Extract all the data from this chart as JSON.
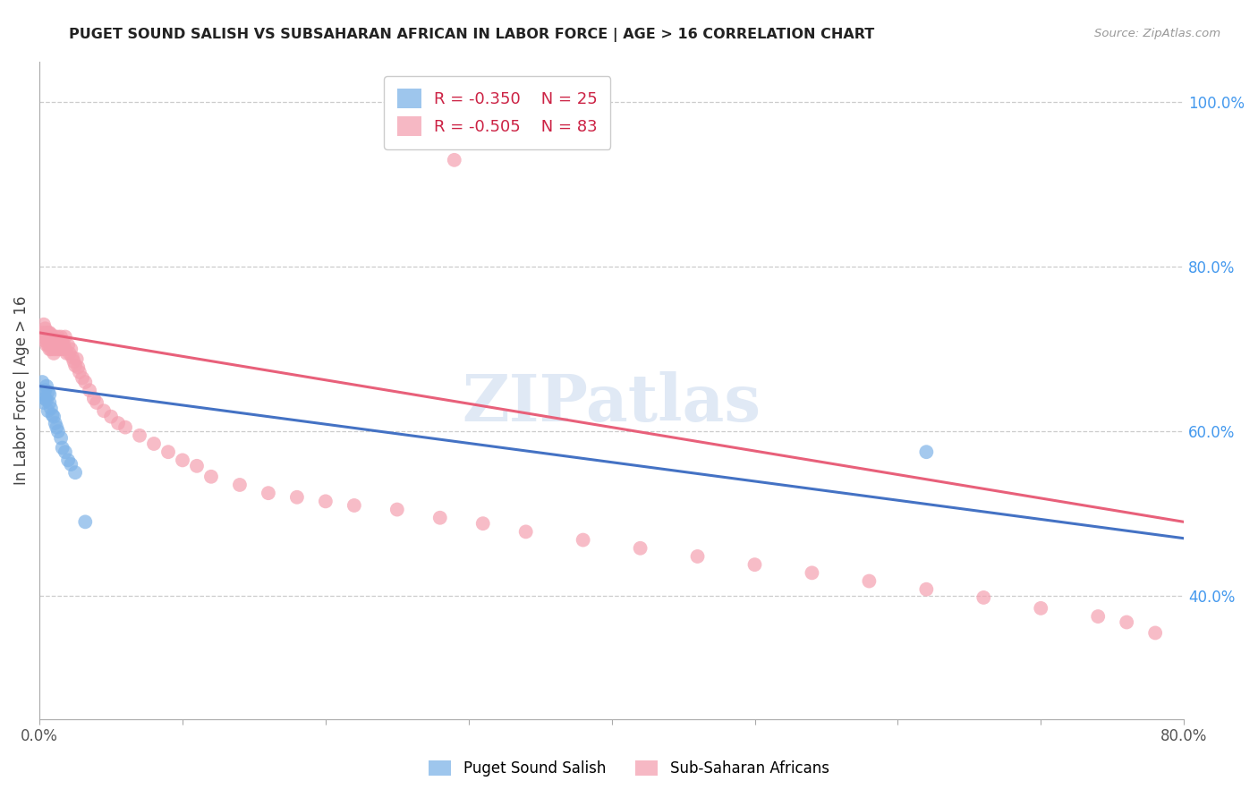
{
  "title": "PUGET SOUND SALISH VS SUBSAHARAN AFRICAN IN LABOR FORCE | AGE > 16 CORRELATION CHART",
  "source": "Source: ZipAtlas.com",
  "ylabel": "In Labor Force | Age > 16",
  "xlim": [
    0.0,
    0.8
  ],
  "ylim": [
    0.25,
    1.05
  ],
  "yticks_right": [
    0.4,
    0.6,
    0.8,
    1.0
  ],
  "ytick_right_labels": [
    "40.0%",
    "60.0%",
    "80.0%",
    "100.0%"
  ],
  "blue_color": "#7EB3E8",
  "pink_color": "#F4A0B0",
  "blue_line_color": "#4472C4",
  "pink_line_color": "#E8607A",
  "legend_r1": "R = -0.350",
  "legend_n1": "N = 25",
  "legend_r2": "R = -0.505",
  "legend_n2": "N = 83",
  "watermark": "ZIPatlas",
  "blue_scatter_x": [
    0.002,
    0.003,
    0.003,
    0.004,
    0.004,
    0.005,
    0.005,
    0.006,
    0.006,
    0.007,
    0.007,
    0.008,
    0.009,
    0.01,
    0.011,
    0.012,
    0.013,
    0.015,
    0.016,
    0.018,
    0.02,
    0.022,
    0.025,
    0.032,
    0.62
  ],
  "blue_scatter_y": [
    0.66,
    0.645,
    0.635,
    0.65,
    0.64,
    0.655,
    0.638,
    0.648,
    0.625,
    0.645,
    0.635,
    0.628,
    0.62,
    0.618,
    0.61,
    0.605,
    0.6,
    0.592,
    0.58,
    0.575,
    0.565,
    0.56,
    0.55,
    0.49,
    0.575
  ],
  "pink_scatter_x": [
    0.002,
    0.003,
    0.003,
    0.004,
    0.004,
    0.005,
    0.005,
    0.005,
    0.006,
    0.006,
    0.006,
    0.007,
    0.007,
    0.007,
    0.008,
    0.008,
    0.008,
    0.009,
    0.009,
    0.01,
    0.01,
    0.01,
    0.011,
    0.011,
    0.012,
    0.012,
    0.013,
    0.013,
    0.014,
    0.015,
    0.015,
    0.016,
    0.016,
    0.017,
    0.018,
    0.018,
    0.019,
    0.02,
    0.021,
    0.022,
    0.023,
    0.024,
    0.025,
    0.026,
    0.027,
    0.028,
    0.03,
    0.032,
    0.035,
    0.038,
    0.04,
    0.045,
    0.05,
    0.055,
    0.06,
    0.07,
    0.08,
    0.09,
    0.1,
    0.11,
    0.12,
    0.14,
    0.16,
    0.18,
    0.2,
    0.22,
    0.25,
    0.28,
    0.31,
    0.34,
    0.38,
    0.42,
    0.46,
    0.5,
    0.54,
    0.58,
    0.62,
    0.66,
    0.7,
    0.74,
    0.76,
    0.78,
    0.29
  ],
  "pink_scatter_y": [
    0.72,
    0.73,
    0.715,
    0.725,
    0.71,
    0.72,
    0.705,
    0.715,
    0.72,
    0.71,
    0.705,
    0.72,
    0.715,
    0.7,
    0.718,
    0.71,
    0.7,
    0.715,
    0.705,
    0.712,
    0.7,
    0.695,
    0.715,
    0.705,
    0.71,
    0.7,
    0.715,
    0.705,
    0.7,
    0.715,
    0.705,
    0.71,
    0.7,
    0.705,
    0.715,
    0.7,
    0.695,
    0.705,
    0.695,
    0.7,
    0.69,
    0.685,
    0.68,
    0.688,
    0.678,
    0.672,
    0.665,
    0.66,
    0.65,
    0.64,
    0.635,
    0.625,
    0.618,
    0.61,
    0.605,
    0.595,
    0.585,
    0.575,
    0.565,
    0.558,
    0.545,
    0.535,
    0.525,
    0.52,
    0.515,
    0.51,
    0.505,
    0.495,
    0.488,
    0.478,
    0.468,
    0.458,
    0.448,
    0.438,
    0.428,
    0.418,
    0.408,
    0.398,
    0.385,
    0.375,
    0.368,
    0.355,
    0.93
  ],
  "blue_line_x": [
    0.0,
    0.8
  ],
  "blue_line_y": [
    0.655,
    0.47
  ],
  "pink_line_x": [
    0.0,
    0.8
  ],
  "pink_line_y": [
    0.72,
    0.49
  ]
}
